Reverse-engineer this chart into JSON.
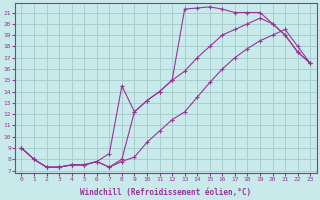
{
  "xlabel": "Windchill (Refroidissement éolien,°C)",
  "ylabel": "",
  "xlim": [
    -0.5,
    23.5
  ],
  "ylim": [
    6.8,
    21.8
  ],
  "xticks": [
    0,
    1,
    2,
    3,
    4,
    5,
    6,
    7,
    8,
    9,
    10,
    11,
    12,
    13,
    14,
    15,
    16,
    17,
    18,
    19,
    20,
    21,
    22,
    23
  ],
  "yticks": [
    7,
    8,
    9,
    10,
    11,
    12,
    13,
    14,
    15,
    16,
    17,
    18,
    19,
    20,
    21
  ],
  "bg_color": "#c8eaea",
  "line_color": "#993399",
  "grid_color": "#a8cece",
  "line1_x": [
    0,
    1,
    2,
    3,
    4,
    5,
    6,
    7,
    8,
    9,
    10,
    11,
    12,
    13,
    14,
    15,
    16,
    17,
    18,
    19,
    20,
    21,
    22,
    23
  ],
  "line1_y": [
    9.0,
    8.0,
    7.3,
    7.3,
    7.5,
    7.5,
    7.8,
    8.5,
    14.5,
    12.2,
    13.2,
    14.0,
    15.0,
    21.3,
    21.4,
    21.5,
    21.3,
    21.0,
    21.0,
    21.0,
    20.0,
    19.0,
    17.5,
    16.5
  ],
  "line2_x": [
    0,
    1,
    2,
    3,
    4,
    5,
    6,
    7,
    8,
    9,
    10,
    11,
    12,
    13,
    14,
    15,
    16,
    17,
    18,
    19,
    20,
    21,
    22,
    23
  ],
  "line2_y": [
    9.0,
    8.0,
    7.3,
    7.3,
    7.5,
    7.5,
    7.8,
    7.3,
    8.0,
    12.2,
    13.2,
    14.0,
    15.0,
    15.8,
    17.0,
    18.0,
    19.0,
    19.5,
    20.0,
    20.5,
    20.0,
    19.0,
    17.5,
    16.5
  ],
  "line3_x": [
    0,
    1,
    2,
    3,
    4,
    5,
    6,
    7,
    8,
    9,
    10,
    11,
    12,
    13,
    14,
    15,
    16,
    17,
    18,
    19,
    20,
    21,
    22,
    23
  ],
  "line3_y": [
    9.0,
    8.0,
    7.3,
    7.3,
    7.5,
    7.5,
    7.8,
    7.3,
    7.8,
    8.2,
    9.5,
    10.5,
    11.5,
    12.2,
    13.5,
    14.8,
    16.0,
    17.0,
    17.8,
    18.5,
    19.0,
    19.5,
    18.0,
    16.5
  ]
}
